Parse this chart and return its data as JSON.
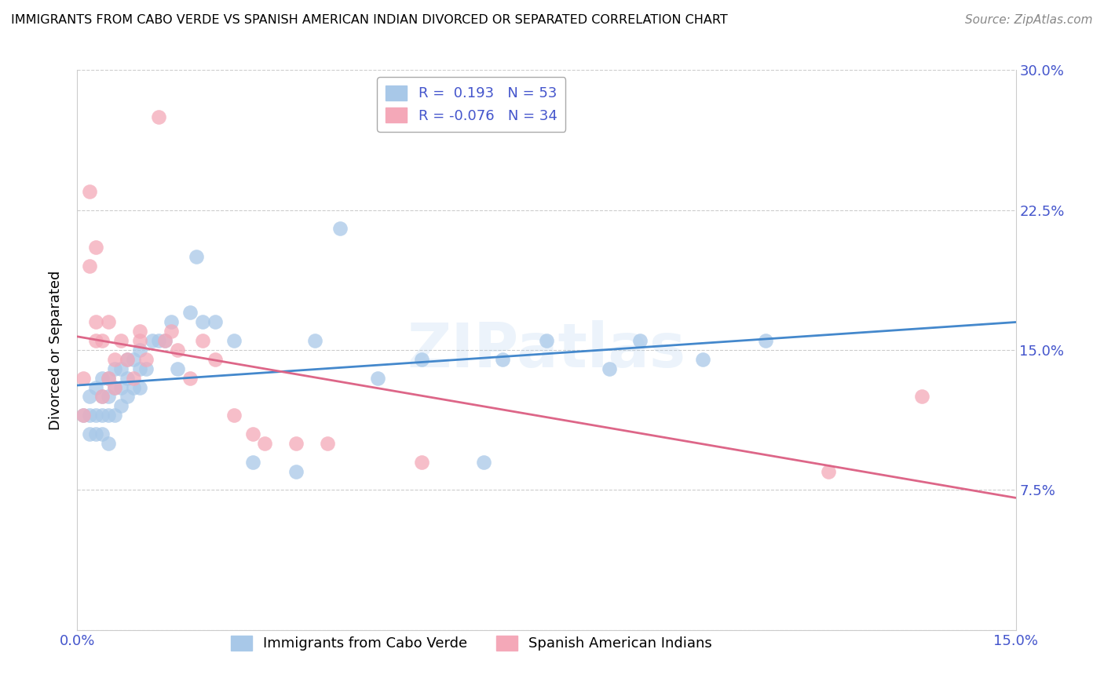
{
  "title": "IMMIGRANTS FROM CABO VERDE VS SPANISH AMERICAN INDIAN DIVORCED OR SEPARATED CORRELATION CHART",
  "source": "Source: ZipAtlas.com",
  "ylabel": "Divorced or Separated",
  "xlim": [
    0.0,
    0.15
  ],
  "ylim": [
    0.0,
    0.3
  ],
  "xticks": [
    0.0,
    0.025,
    0.05,
    0.075,
    0.1,
    0.125,
    0.15
  ],
  "xticklabels": [
    "0.0%",
    "",
    "",
    "",
    "",
    "",
    "15.0%"
  ],
  "yticks": [
    0.0,
    0.075,
    0.15,
    0.225,
    0.3
  ],
  "yticklabels_right": [
    "",
    "7.5%",
    "15.0%",
    "22.5%",
    "30.0%"
  ],
  "blue_R": 0.193,
  "blue_N": 53,
  "pink_R": -0.076,
  "pink_N": 34,
  "blue_color": "#a8c8e8",
  "pink_color": "#f4a8b8",
  "blue_line_color": "#4488cc",
  "pink_line_color": "#dd6688",
  "blue_label": "Immigrants from Cabo Verde",
  "pink_label": "Spanish American Indians",
  "tick_color": "#4455cc",
  "blue_x": [
    0.001,
    0.002,
    0.002,
    0.002,
    0.003,
    0.003,
    0.003,
    0.004,
    0.004,
    0.004,
    0.004,
    0.005,
    0.005,
    0.005,
    0.005,
    0.006,
    0.006,
    0.006,
    0.007,
    0.007,
    0.007,
    0.008,
    0.008,
    0.008,
    0.009,
    0.009,
    0.01,
    0.01,
    0.01,
    0.011,
    0.012,
    0.013,
    0.014,
    0.015,
    0.016,
    0.018,
    0.019,
    0.02,
    0.022,
    0.025,
    0.028,
    0.035,
    0.038,
    0.042,
    0.048,
    0.055,
    0.065,
    0.068,
    0.075,
    0.085,
    0.09,
    0.1,
    0.11
  ],
  "blue_y": [
    0.115,
    0.125,
    0.115,
    0.105,
    0.13,
    0.115,
    0.105,
    0.135,
    0.125,
    0.115,
    0.105,
    0.135,
    0.125,
    0.115,
    0.1,
    0.14,
    0.13,
    0.115,
    0.14,
    0.13,
    0.12,
    0.145,
    0.135,
    0.125,
    0.145,
    0.13,
    0.15,
    0.14,
    0.13,
    0.14,
    0.155,
    0.155,
    0.155,
    0.165,
    0.14,
    0.17,
    0.2,
    0.165,
    0.165,
    0.155,
    0.09,
    0.085,
    0.155,
    0.215,
    0.135,
    0.145,
    0.09,
    0.145,
    0.155,
    0.14,
    0.155,
    0.145,
    0.155
  ],
  "pink_x": [
    0.001,
    0.001,
    0.002,
    0.002,
    0.003,
    0.003,
    0.003,
    0.004,
    0.004,
    0.005,
    0.005,
    0.006,
    0.006,
    0.007,
    0.008,
    0.009,
    0.01,
    0.01,
    0.011,
    0.013,
    0.014,
    0.015,
    0.016,
    0.018,
    0.02,
    0.022,
    0.025,
    0.028,
    0.03,
    0.035,
    0.04,
    0.055,
    0.12,
    0.135
  ],
  "pink_y": [
    0.135,
    0.115,
    0.235,
    0.195,
    0.205,
    0.165,
    0.155,
    0.155,
    0.125,
    0.165,
    0.135,
    0.145,
    0.13,
    0.155,
    0.145,
    0.135,
    0.16,
    0.155,
    0.145,
    0.275,
    0.155,
    0.16,
    0.15,
    0.135,
    0.155,
    0.145,
    0.115,
    0.105,
    0.1,
    0.1,
    0.1,
    0.09,
    0.085,
    0.125
  ]
}
